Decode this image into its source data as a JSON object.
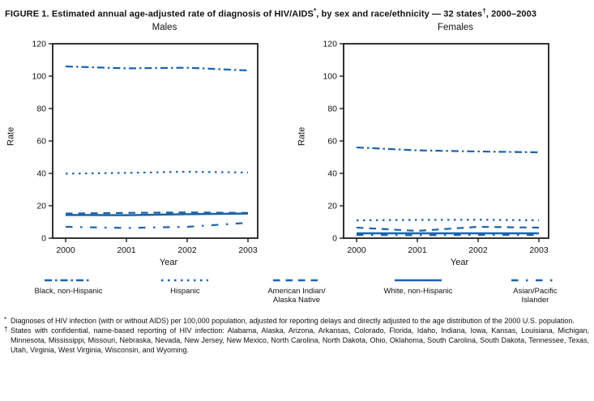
{
  "title": {
    "text_start": "FIGURE 1. Estimated annual age-adjusted rate of diagnosis of HIV/AIDS",
    "asterisk": "*",
    "text_middle": ", by sex and race/ethnicity — 32 states",
    "dagger": "†",
    "text_end": ", 2000–2003"
  },
  "line_color": "#1A63AB",
  "axis_color": "#111111",
  "chart_data": [
    {
      "type": "line",
      "title": "Males",
      "xlabel": "Year",
      "ylabel": "Rate",
      "x": [
        2000,
        2001,
        2002,
        2003
      ],
      "ylim": [
        0,
        120
      ],
      "ytick_step": 20,
      "grid": false,
      "legend_position": "bottom-shared",
      "series": [
        {
          "name": "Black, non-Hispanic",
          "line_style": "dash-dot",
          "values": [
            106,
            104.8,
            105.2,
            103.5
          ]
        },
        {
          "name": "Hispanic",
          "line_style": "dotted",
          "values": [
            39.8,
            40.3,
            41,
            40.5
          ]
        },
        {
          "name": "American Indian/Alaska Native",
          "line_style": "dashed",
          "values": [
            15.2,
            15.6,
            15.9,
            15.6
          ]
        },
        {
          "name": "White, non-Hispanic",
          "line_style": "solid",
          "values": [
            14.3,
            14.2,
            14.8,
            15.2
          ]
        },
        {
          "name": "Asian/Pacific Islander",
          "line_style": "long-dash-dot",
          "values": [
            7,
            6.3,
            7,
            9.5
          ]
        }
      ]
    },
    {
      "type": "line",
      "title": "Females",
      "xlabel": "Year",
      "ylabel": "Rate",
      "x": [
        2000,
        2001,
        2002,
        2003
      ],
      "ylim": [
        0,
        120
      ],
      "ytick_step": 20,
      "grid": false,
      "legend_position": "bottom-shared",
      "series": [
        {
          "name": "Black, non-Hispanic",
          "line_style": "dash-dot",
          "values": [
            56,
            54.2,
            53.5,
            53
          ]
        },
        {
          "name": "Hispanic",
          "line_style": "dotted",
          "values": [
            11,
            11.3,
            11.4,
            11
          ]
        },
        {
          "name": "American Indian/Alaska Native",
          "line_style": "dashed",
          "values": [
            6.5,
            4.5,
            7,
            6.5
          ]
        },
        {
          "name": "White, non-Hispanic",
          "line_style": "solid",
          "values": [
            3,
            3,
            3,
            3
          ]
        },
        {
          "name": "Asian/Pacific Islander",
          "line_style": "long-dash-dot",
          "values": [
            2,
            1.8,
            2,
            2
          ]
        }
      ]
    }
  ],
  "legend": {
    "items": [
      {
        "label": "Black, non-Hispanic",
        "line_style": "dash-dot"
      },
      {
        "label": "Hispanic",
        "line_style": "dotted"
      },
      {
        "label": "American Indian/\nAlaska Native",
        "line_style": "dashed"
      },
      {
        "label": "White, non-Hispanic",
        "line_style": "solid"
      },
      {
        "label": "Asian/Pacific\nIslander",
        "line_style": "long-dash-dot"
      }
    ]
  },
  "footnotes": [
    {
      "marker": "*",
      "text": "Diagnoses of HIV infection (with or without AIDS) per 100,000 population, adjusted for reporting delays and directly adjusted to the age distribution of the 2000 U.S. population."
    },
    {
      "marker": "†",
      "text": "States with confidential, name-based reporting of HIV infection: Alabama, Alaska, Arizona, Arkansas, Colorado, Florida, Idaho, Indiana, Iowa, Kansas, Louisiana, Michigan, Minnesota, Mississippi, Missouri, Nebraska, Nevada, New Jersey, New Mexico, North Carolina, North Dakota, Ohio, Oklahoma, South Carolina, South Dakota, Tennessee, Texas, Utah, Virginia, West Virginia, Wisconsin, and Wyoming."
    }
  ]
}
